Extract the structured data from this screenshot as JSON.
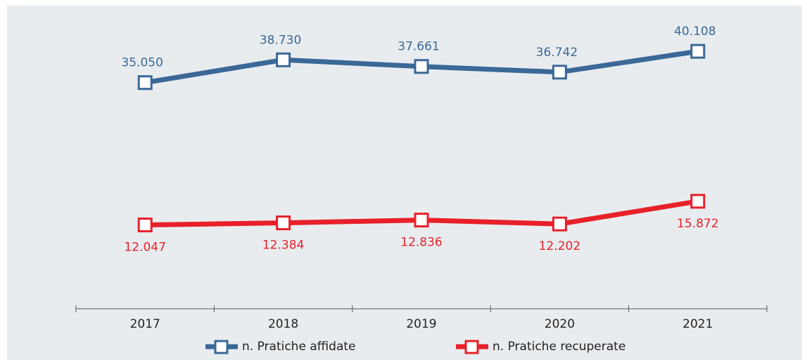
{
  "chart_data": {
    "type": "line",
    "categories": [
      "2017",
      "2018",
      "2019",
      "2020",
      "2021"
    ],
    "series": [
      {
        "name": "n. Pratiche affidate",
        "color": "#3a6897",
        "values": [
          35050,
          38730,
          37661,
          36742,
          40108
        ],
        "value_labels": [
          "35.050",
          "38.730",
          "37.661",
          "36.742",
          "40.108"
        ]
      },
      {
        "name": "n. Pratiche recuperate",
        "color": "#e8202a",
        "values": [
          12047,
          12384,
          12836,
          12202,
          15872
        ],
        "value_labels": [
          "12.047",
          "12.384",
          "12.836",
          "12.202",
          "15.872"
        ]
      }
    ],
    "ylim": [
      -1500,
      45000
    ]
  }
}
